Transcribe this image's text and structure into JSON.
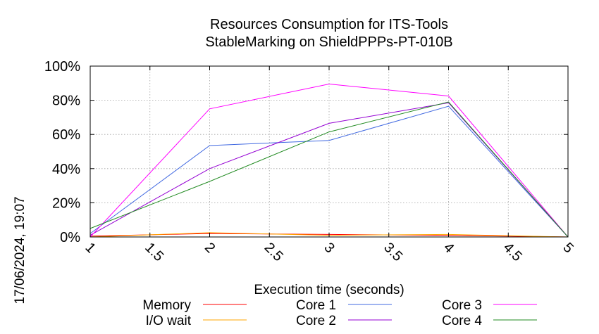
{
  "chart_data": {
    "type": "line",
    "title": "Resources Consumption for ITS-Tools",
    "subtitle": "StableMarking on ShieldPPPs-PT-010B",
    "xlabel": "Execution time (seconds)",
    "ylabel": "",
    "side_label": "17/06/2024, 19:07",
    "xlim": [
      1,
      5
    ],
    "ylim": [
      0,
      100
    ],
    "x_ticks": [
      1,
      1.5,
      2,
      2.5,
      3,
      3.5,
      4,
      4.5,
      5
    ],
    "x_tick_labels": [
      "1",
      "1.5",
      "2",
      "2.5",
      "3",
      "3.5",
      "4",
      "4.5",
      "5"
    ],
    "y_ticks": [
      0,
      20,
      40,
      60,
      80,
      100
    ],
    "y_tick_labels": [
      "0%",
      "20%",
      "40%",
      "60%",
      "80%",
      "100%"
    ],
    "grid": true,
    "legend_position": "bottom",
    "x": [
      1,
      2,
      3,
      4,
      5
    ],
    "series": [
      {
        "name": "Memory",
        "color": "#ff0000",
        "values": [
          0.5,
          2,
          1.5,
          1,
          0
        ]
      },
      {
        "name": "I/O wait",
        "color": "#ffa500",
        "values": [
          0,
          2.5,
          1,
          1.5,
          0
        ]
      },
      {
        "name": "Core 1",
        "color": "#4169e1",
        "values": [
          2,
          53.5,
          56.5,
          76.5,
          0
        ]
      },
      {
        "name": "Core 2",
        "color": "#9400d3",
        "values": [
          1,
          40,
          66.5,
          78.5,
          0
        ]
      },
      {
        "name": "Core 3",
        "color": "#ff00ff",
        "values": [
          0,
          75,
          89.5,
          82.5,
          0
        ]
      },
      {
        "name": "Core 4",
        "color": "#228b22",
        "values": [
          5,
          32.5,
          61.5,
          79,
          0
        ]
      }
    ]
  }
}
